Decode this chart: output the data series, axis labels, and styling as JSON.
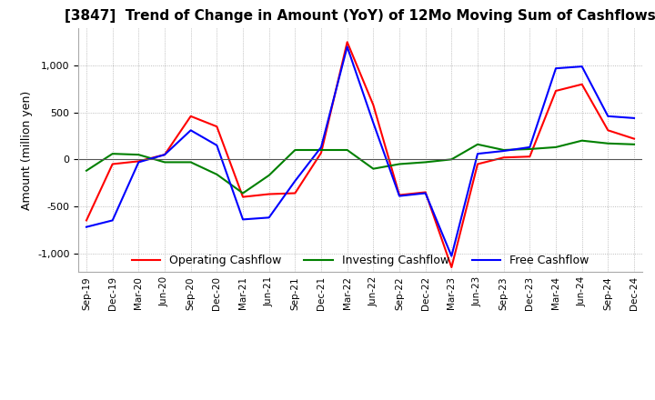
{
  "title": "[3847]  Trend of Change in Amount (YoY) of 12Mo Moving Sum of Cashflows",
  "ylabel": "Amount (million yen)",
  "ylim": [
    -1200,
    1400
  ],
  "yticks": [
    -1000,
    -500,
    0,
    500,
    1000
  ],
  "x_labels": [
    "Sep-19",
    "Dec-19",
    "Mar-20",
    "Jun-20",
    "Sep-20",
    "Dec-20",
    "Mar-21",
    "Jun-21",
    "Sep-21",
    "Dec-21",
    "Mar-22",
    "Jun-22",
    "Sep-22",
    "Dec-22",
    "Mar-23",
    "Jun-23",
    "Sep-23",
    "Dec-23",
    "Mar-24",
    "Jun-24",
    "Sep-24",
    "Dec-24"
  ],
  "operating": [
    -650,
    -50,
    -20,
    50,
    460,
    350,
    -400,
    -370,
    -360,
    70,
    1250,
    580,
    -380,
    -350,
    -1150,
    -50,
    20,
    30,
    730,
    800,
    310,
    220
  ],
  "investing": [
    -120,
    60,
    50,
    -30,
    -30,
    -160,
    -360,
    -170,
    100,
    100,
    100,
    -100,
    -50,
    -30,
    0,
    160,
    100,
    110,
    130,
    200,
    170,
    160
  ],
  "free": [
    -720,
    -650,
    -30,
    50,
    310,
    150,
    -640,
    -620,
    -230,
    130,
    1200,
    390,
    -390,
    -360,
    -1030,
    60,
    90,
    130,
    970,
    990,
    460,
    440
  ],
  "op_color": "#ff0000",
  "inv_color": "#008000",
  "free_color": "#0000ff",
  "bg_color": "#ffffff",
  "grid_color": "#aaaaaa"
}
